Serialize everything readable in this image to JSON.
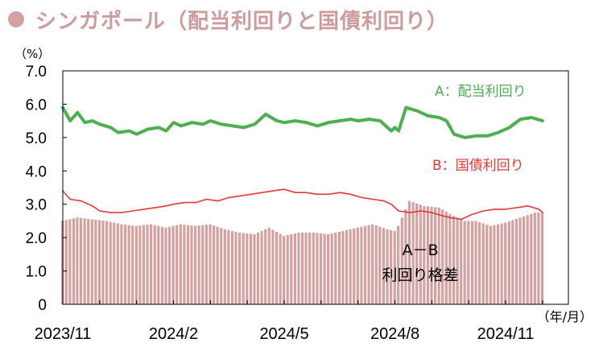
{
  "title": "シンガポール（配当利回りと国債利回り）",
  "colors": {
    "dividend": "#4caf50",
    "bond": "#e53935",
    "spread": "#d4a0a0",
    "title": "#cf9a9a"
  },
  "chart_data": {
    "type": "line",
    "title": "シンガポール（配当利回りと国債利回り）",
    "ylabel": "（%）",
    "xlabel": "（年/月）",
    "ylim": [
      0,
      7
    ],
    "yticks": [
      "0",
      "1.0",
      "2.0",
      "3.0",
      "4.0",
      "5.0",
      "6.0",
      "7.0"
    ],
    "xlim": [
      0,
      13.7
    ],
    "xticks": [
      {
        "label": "2023/11",
        "x": 0
      },
      {
        "label": "2024/2",
        "x": 3
      },
      {
        "label": "2024/5",
        "x": 6
      },
      {
        "label": "2024/8",
        "x": 9
      },
      {
        "label": "2024/11",
        "x": 12
      }
    ],
    "grid": false,
    "series": [
      {
        "name": "A：配当利回り",
        "kind": "line",
        "x": [
          0,
          0.2,
          0.4,
          0.6,
          0.8,
          1.0,
          1.3,
          1.5,
          1.8,
          2.0,
          2.3,
          2.6,
          2.8,
          3.0,
          3.2,
          3.5,
          3.8,
          4.0,
          4.3,
          4.6,
          4.9,
          5.2,
          5.5,
          5.8,
          6.0,
          6.3,
          6.6,
          6.9,
          7.2,
          7.5,
          7.8,
          8.0,
          8.3,
          8.6,
          8.9,
          9.0,
          9.1,
          9.3,
          9.6,
          9.9,
          10.2,
          10.4,
          10.6,
          10.9,
          11.2,
          11.5,
          11.8,
          12.1,
          12.4,
          12.7,
          13.0
        ],
        "values": [
          5.9,
          5.5,
          5.75,
          5.45,
          5.5,
          5.4,
          5.3,
          5.15,
          5.2,
          5.1,
          5.25,
          5.3,
          5.2,
          5.45,
          5.35,
          5.45,
          5.4,
          5.5,
          5.4,
          5.35,
          5.3,
          5.4,
          5.7,
          5.5,
          5.45,
          5.5,
          5.45,
          5.35,
          5.45,
          5.5,
          5.55,
          5.5,
          5.55,
          5.5,
          5.2,
          5.3,
          5.2,
          5.9,
          5.8,
          5.65,
          5.6,
          5.5,
          5.1,
          5.0,
          5.05,
          5.05,
          5.15,
          5.3,
          5.55,
          5.6,
          5.5
        ]
      },
      {
        "name": "B：国債利回り",
        "kind": "line",
        "x": [
          0,
          0.2,
          0.5,
          0.8,
          1.0,
          1.3,
          1.6,
          1.9,
          2.2,
          2.5,
          2.8,
          3.0,
          3.3,
          3.6,
          3.9,
          4.2,
          4.5,
          4.8,
          5.1,
          5.4,
          5.7,
          6.0,
          6.3,
          6.6,
          6.9,
          7.2,
          7.5,
          7.8,
          8.1,
          8.4,
          8.7,
          8.9,
          9.1,
          9.4,
          9.7,
          10.0,
          10.3,
          10.5,
          10.8,
          11.1,
          11.4,
          11.7,
          12.0,
          12.3,
          12.6,
          12.9,
          13.0
        ],
        "values": [
          3.4,
          3.15,
          3.1,
          2.95,
          2.8,
          2.75,
          2.75,
          2.8,
          2.85,
          2.9,
          2.95,
          3.0,
          3.05,
          3.05,
          3.15,
          3.1,
          3.2,
          3.25,
          3.3,
          3.35,
          3.4,
          3.45,
          3.35,
          3.35,
          3.3,
          3.3,
          3.35,
          3.3,
          3.2,
          3.15,
          3.1,
          3.0,
          2.8,
          2.75,
          2.8,
          2.75,
          2.65,
          2.6,
          2.55,
          2.7,
          2.8,
          2.85,
          2.85,
          2.9,
          2.95,
          2.85,
          2.75
        ]
      }
    ],
    "spread": {
      "name": "A－B 利回り格差",
      "kind": "bar",
      "x": [
        0,
        0.4,
        0.8,
        1.2,
        1.6,
        2.0,
        2.4,
        2.8,
        3.2,
        3.6,
        4.0,
        4.4,
        4.8,
        5.2,
        5.6,
        6.0,
        6.4,
        6.8,
        7.2,
        7.6,
        8.0,
        8.4,
        8.8,
        9.0,
        9.1,
        9.4,
        9.8,
        10.2,
        10.6,
        10.9,
        11.2,
        11.6,
        12.0,
        12.4,
        12.8,
        13.0
      ],
      "values": [
        2.5,
        2.6,
        2.55,
        2.5,
        2.4,
        2.35,
        2.4,
        2.3,
        2.4,
        2.35,
        2.4,
        2.25,
        2.15,
        2.1,
        2.3,
        2.05,
        2.15,
        2.15,
        2.1,
        2.2,
        2.3,
        2.4,
        2.25,
        2.2,
        2.35,
        3.1,
        2.95,
        2.9,
        2.65,
        2.5,
        2.5,
        2.35,
        2.45,
        2.6,
        2.75,
        2.75
      ]
    },
    "annotations": [
      "A：配当利回り",
      "B：国債利回り",
      "A－B",
      "利回り格差"
    ]
  }
}
